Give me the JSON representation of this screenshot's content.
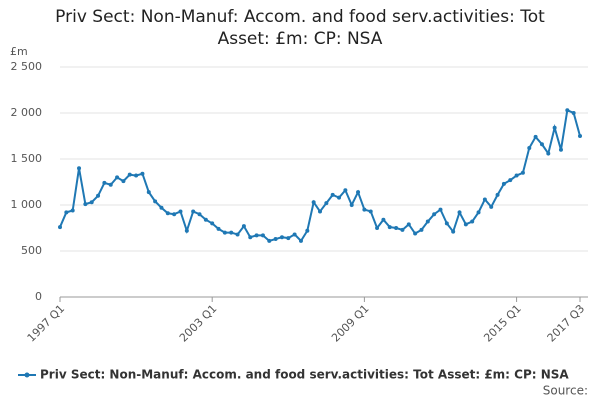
{
  "chart_data": {
    "type": "line",
    "title": "Priv Sect: Non-Manuf: Accom. and food serv.activities: Tot Asset: £m: CP: NSA",
    "y_label": "£m",
    "source": "Source:",
    "categories": [
      "1997 Q1",
      null,
      null,
      null,
      null,
      null,
      null,
      null,
      null,
      null,
      null,
      null,
      null,
      null,
      null,
      null,
      null,
      null,
      null,
      null,
      null,
      null,
      null,
      null,
      "2003 Q1",
      null,
      null,
      null,
      null,
      null,
      null,
      null,
      null,
      null,
      null,
      null,
      null,
      null,
      null,
      null,
      null,
      null,
      null,
      null,
      null,
      null,
      null,
      null,
      "2009 Q1",
      null,
      null,
      null,
      null,
      null,
      null,
      null,
      null,
      null,
      null,
      null,
      null,
      null,
      null,
      null,
      null,
      null,
      null,
      null,
      null,
      null,
      null,
      null,
      "2015 Q1",
      null,
      null,
      null,
      null,
      null,
      null,
      null,
      null,
      null,
      "2017 Q3"
    ],
    "series": [
      {
        "name": "Priv Sect: Non-Manuf: Accom. and food serv.activities: Tot Asset: £m: CP: NSA",
        "color": "#1f78b4",
        "values": [
          760,
          920,
          940,
          1400,
          1010,
          1030,
          1100,
          1240,
          1220,
          1300,
          1260,
          1330,
          1320,
          1340,
          1140,
          1040,
          970,
          910,
          900,
          930,
          720,
          930,
          900,
          840,
          800,
          740,
          700,
          700,
          680,
          770,
          650,
          670,
          670,
          610,
          630,
          650,
          640,
          680,
          610,
          720,
          1030,
          930,
          1020,
          1110,
          1080,
          1160,
          1000,
          1140,
          950,
          930,
          750,
          840,
          760,
          750,
          730,
          790,
          690,
          730,
          820,
          900,
          950,
          800,
          710,
          920,
          790,
          820,
          920,
          1060,
          980,
          1110,
          1230,
          1270,
          1320,
          1350,
          1620,
          1740,
          1660,
          1560,
          1840,
          1600,
          2030,
          2000,
          1750
        ]
      }
    ],
    "ylim": [
      0,
      2500
    ],
    "yticks": [
      0,
      500,
      {
        "value": 1000,
        "label": "1 000"
      },
      {
        "value": 1500,
        "label": "1 500"
      },
      {
        "value": 2000,
        "label": "2 000"
      },
      {
        "value": 2500,
        "label": "2 500"
      }
    ],
    "grid": true
  }
}
